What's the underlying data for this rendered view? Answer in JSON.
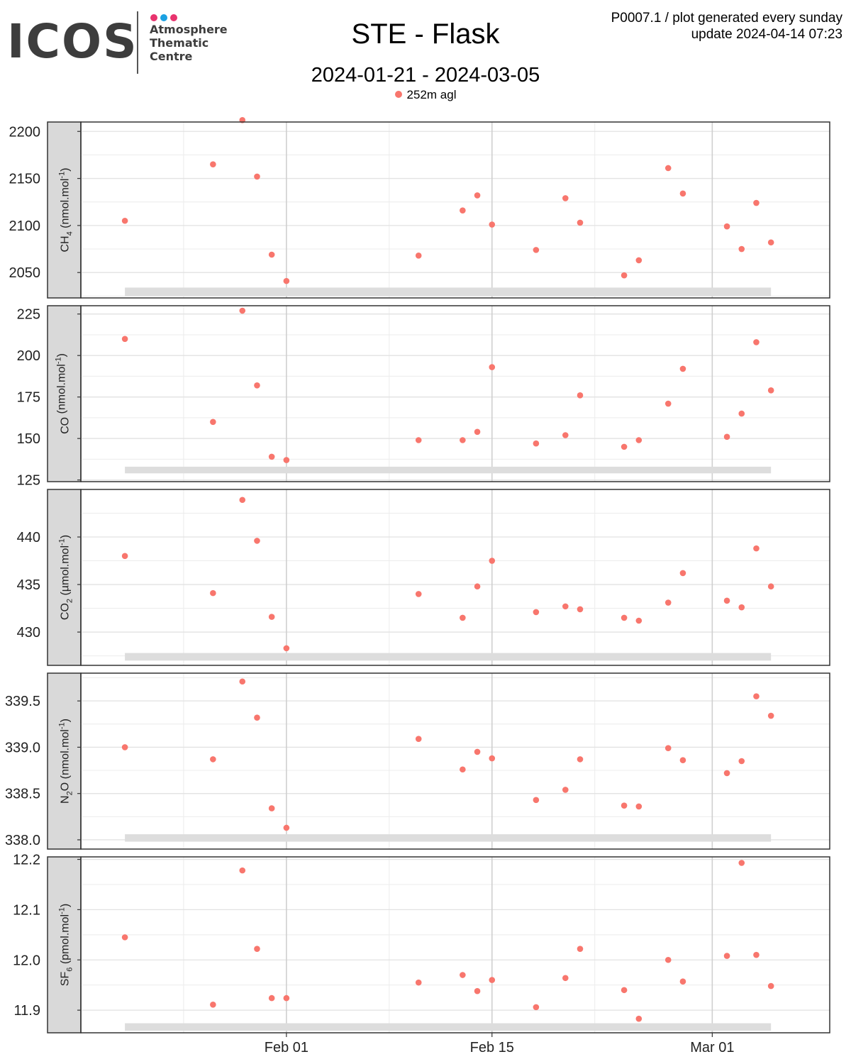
{
  "header": {
    "logo_text": "ICOS",
    "logo_sub": [
      "Atmosphere",
      "Thematic",
      "Centre"
    ],
    "logo_dot_colors": [
      "#e8336e",
      "#1ba1e2",
      "#e8336e"
    ],
    "title": "STE - Flask",
    "subtitle": "2024-01-21 - 2024-03-05",
    "info_line1": "P0007.1 / plot generated every sunday",
    "info_line2": "update  2024-04-14 07:23"
  },
  "legend": {
    "label": "252m agl",
    "color": "#f8766d"
  },
  "colors": {
    "points": "#f8766d",
    "strip": "#d9d9d9",
    "band": "#dddddd",
    "grid_major": "#cfcfcf",
    "grid_minor": "#ececec"
  },
  "chart_data": {
    "type": "scatter",
    "x_axis": {
      "range": [
        "2024-01-18",
        "2024-03-09"
      ],
      "ticks": [
        "2024-02-01",
        "2024-02-15",
        "2024-03-01"
      ],
      "tick_labels": [
        "Feb 01",
        "Feb 15",
        "Mar 01"
      ],
      "minor_ticks": [
        "2024-01-25",
        "2024-02-08",
        "2024-02-22"
      ]
    },
    "dates": [
      "2024-01-21",
      "2024-01-27",
      "2024-01-29",
      "2024-01-30",
      "2024-01-31",
      "2024-02-01",
      "2024-02-10",
      "2024-02-13",
      "2024-02-14",
      "2024-02-15",
      "2024-02-18",
      "2024-02-20",
      "2024-02-21",
      "2024-02-24",
      "2024-02-25",
      "2024-02-27",
      "2024-02-28",
      "2024-03-02",
      "2024-03-03",
      "2024-03-04",
      "2024-03-05"
    ],
    "panels": [
      {
        "strip_label": "CH4 (nmol.mol-1)",
        "label_main": "CH",
        "label_sub": "4",
        "label_unit": " (nmol.mol",
        "label_sup": "-1",
        "label_end": ")",
        "ylim": [
          2023,
          2210
        ],
        "ticks": [
          2050,
          2100,
          2150,
          2200
        ],
        "tick_labels": [
          "2050",
          "2100",
          "2150",
          "2200"
        ],
        "band": [
          2025,
          2034
        ],
        "values": [
          2105,
          2165,
          2212,
          2152,
          2069,
          2041,
          2068,
          2116,
          2132,
          2101,
          2074,
          2129,
          2103,
          2047,
          2063,
          2161,
          2134,
          2099,
          2075,
          2124,
          2082
        ]
      },
      {
        "strip_label": "CO (nmol.mol-1)",
        "label_main": "CO",
        "label_sub": "",
        "label_unit": " (nmol.mol",
        "label_sup": "-1",
        "label_end": ")",
        "ylim": [
          124,
          230
        ],
        "ticks": [
          125,
          150,
          175,
          200,
          225
        ],
        "tick_labels": [
          "125",
          "150",
          "175",
          "200",
          "225"
        ],
        "band": [
          129,
          133
        ],
        "values": [
          210,
          160,
          227,
          182,
          139,
          137,
          149,
          149,
          154,
          193,
          147,
          152,
          176,
          145,
          149,
          171,
          192,
          151,
          165,
          208,
          179
        ]
      },
      {
        "strip_label": "CO2 (µmol.mol-1)",
        "label_main": "CO",
        "label_sub": "2",
        "label_unit": " (µmol.mol",
        "label_sup": "-1",
        "label_end": ")",
        "ylim": [
          426.5,
          445
        ],
        "ticks": [
          430,
          435,
          440
        ],
        "tick_labels": [
          "430",
          "435",
          "440"
        ],
        "band": [
          427,
          427.8
        ],
        "values": [
          438,
          434.1,
          443.9,
          439.6,
          431.6,
          428.3,
          434,
          431.5,
          434.8,
          437.5,
          432.1,
          432.7,
          432.4,
          431.5,
          431.2,
          433.1,
          436.2,
          433.3,
          432.6,
          438.8,
          434.8
        ]
      },
      {
        "strip_label": "N2O (nmol.mol-1)",
        "label_main": "N",
        "label_sub": "2",
        "label_unit": "O (nmol.mol",
        "label_sup": "-1",
        "label_end": ")",
        "ylim": [
          337.9,
          339.8
        ],
        "ticks": [
          338.0,
          338.5,
          339.0,
          339.5
        ],
        "tick_labels": [
          "338.0",
          "338.5",
          "339.0",
          "339.5"
        ],
        "band": [
          337.98,
          338.06
        ],
        "values": [
          339.0,
          338.87,
          339.71,
          339.32,
          338.34,
          338.13,
          339.09,
          338.76,
          338.95,
          338.88,
          338.43,
          338.54,
          338.87,
          338.37,
          338.36,
          338.99,
          338.86,
          338.72,
          338.85,
          339.55,
          339.34
        ]
      },
      {
        "strip_label": "SF6 (pmol.mol-1)",
        "label_main": "SF",
        "label_sub": "6",
        "label_unit": " (pmol.mol",
        "label_sup": "-1",
        "label_end": ")",
        "ylim": [
          11.855,
          12.205
        ],
        "ticks": [
          11.9,
          12.0,
          12.1,
          12.2
        ],
        "tick_labels": [
          "11.9",
          "12.0",
          "12.1",
          "12.2"
        ],
        "band": [
          11.859,
          11.874
        ],
        "values": [
          12.045,
          11.911,
          12.178,
          12.022,
          11.924,
          11.924,
          11.955,
          11.97,
          11.938,
          11.96,
          11.906,
          11.964,
          12.022,
          11.94,
          11.883,
          12.0,
          11.957,
          12.008,
          12.193,
          12.01,
          11.948
        ]
      }
    ]
  }
}
